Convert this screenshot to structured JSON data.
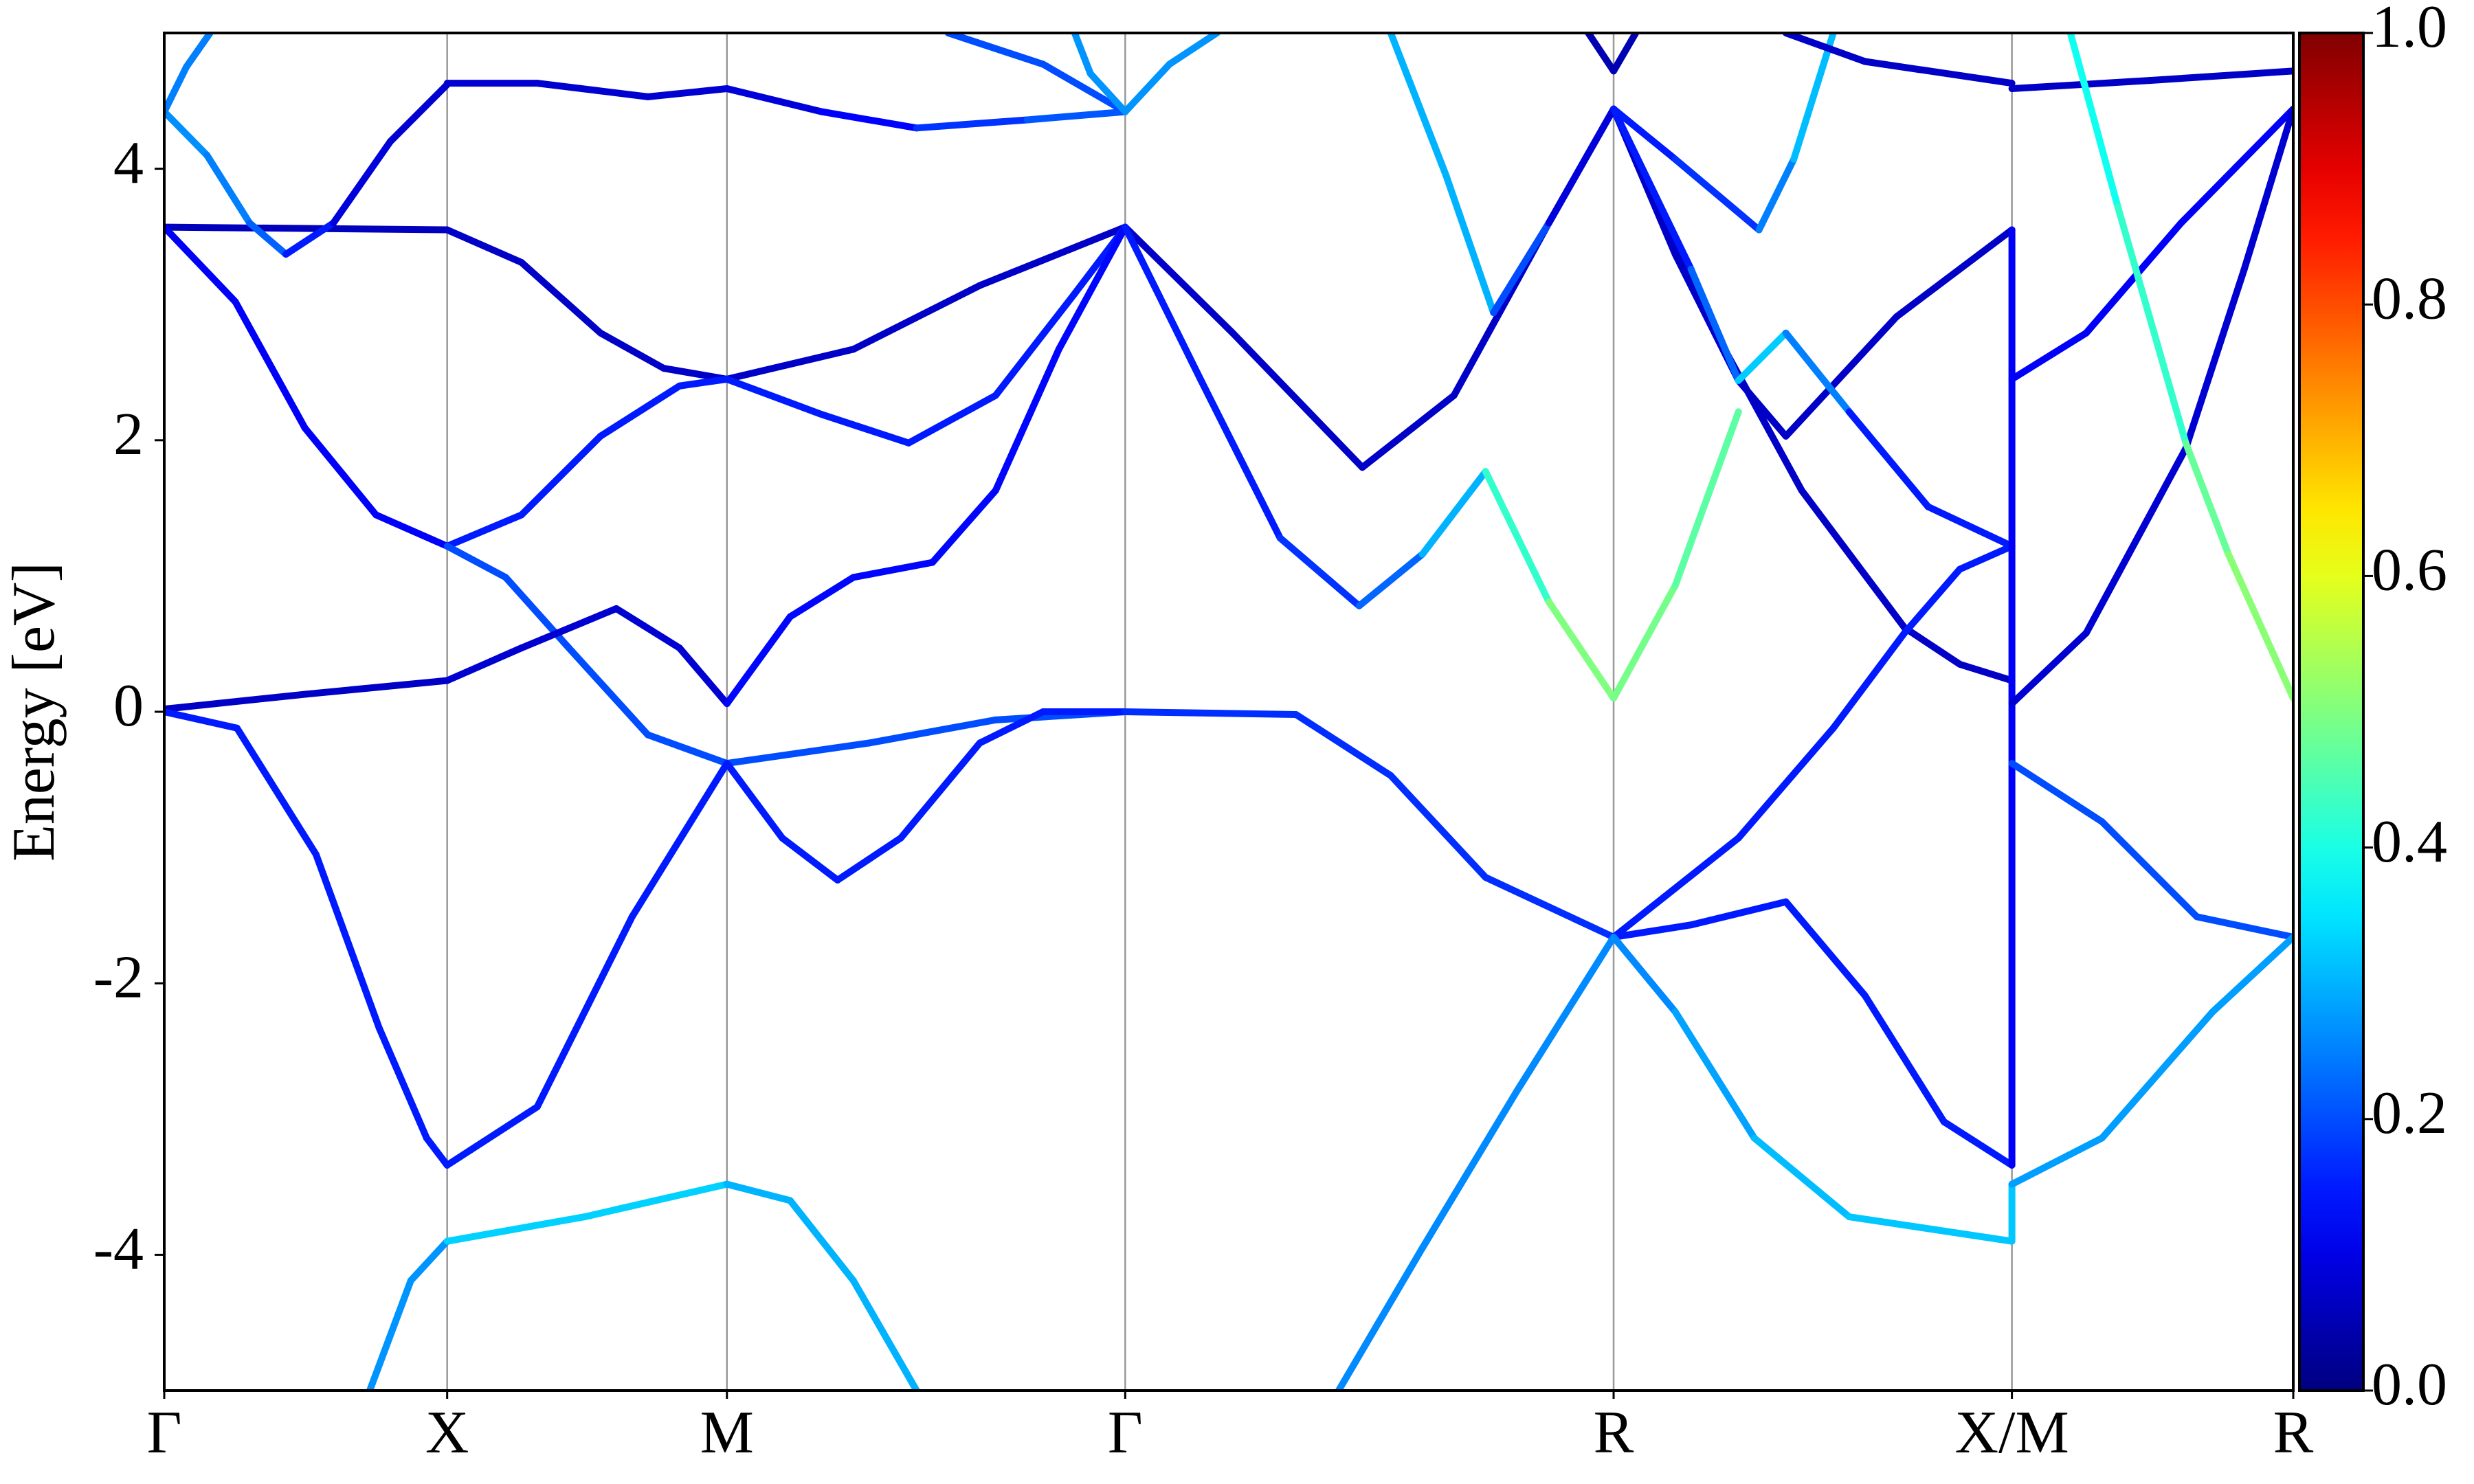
{
  "chart_data": {
    "type": "line",
    "ylabel": "Energy [eV]",
    "colormap": "jet",
    "xlim": [
      0,
      13.47
    ],
    "ylim": [
      -5,
      5
    ],
    "grid": true,
    "xticks": [
      {
        "value": 0,
        "label": "Γ"
      },
      {
        "value": 1.79,
        "label": "X"
      },
      {
        "value": 3.56,
        "label": "M"
      },
      {
        "value": 6.08,
        "label": "Γ"
      },
      {
        "value": 9.17,
        "label": "R"
      },
      {
        "value": 11.69,
        "label": "X/M"
      },
      {
        "value": 13.47,
        "label": "R"
      }
    ],
    "yticks": [
      -4,
      -2,
      0,
      2,
      4
    ],
    "colorbar": {
      "lim": [
        0,
        1
      ],
      "ticks": [
        {
          "value": 0,
          "label": "0.0"
        },
        {
          "value": 0.2,
          "label": "0.2"
        },
        {
          "value": 0.4,
          "label": "0.4"
        },
        {
          "value": 0.6,
          "label": "0.6"
        },
        {
          "value": 0.8,
          "label": "0.8"
        },
        {
          "value": 1,
          "label": "1.0"
        }
      ]
    },
    "series": [
      {
        "x": [
          0,
          1.79
        ],
        "values": [
          3.57,
          3.55
        ],
        "weights": [
          0.06,
          0.06
        ]
      },
      {
        "x": [
          0,
          0.45,
          0.89,
          1.34,
          1.79
        ],
        "values": [
          3.57,
          3.02,
          2.09,
          1.45,
          1.22
        ],
        "weights": [
          0.12,
          0.12,
          0.12,
          0.12,
          0.12
        ]
      },
      {
        "x": [
          0,
          0.27,
          0.54,
          0.77,
          1.07,
          1.43,
          1.79
        ],
        "values": [
          4.42,
          4.1,
          3.6,
          3.37,
          3.6,
          4.2,
          4.62
        ],
        "weights": [
          0.27,
          0.26,
          0.24,
          0.2,
          0.1,
          0.08,
          0.08
        ]
      },
      {
        "x": [
          0,
          0.14,
          0.29
        ],
        "values": [
          4.42,
          4.75,
          5.0
        ],
        "weights": [
          0.25,
          0.25,
          0.25
        ]
      },
      {
        "x": [
          0,
          0.9,
          1.79
        ],
        "values": [
          0.02,
          0.13,
          0.23
        ],
        "weights": [
          0.07,
          0.07,
          0.07
        ]
      },
      {
        "x": [
          0,
          0.46,
          0.96,
          1.36,
          1.66,
          1.79
        ],
        "values": [
          0.0,
          -0.12,
          -1.05,
          -2.33,
          -3.14,
          -3.34
        ],
        "weights": [
          0.15,
          0.15,
          0.15,
          0.15,
          0.15,
          0.15
        ]
      },
      {
        "x": [
          1.3,
          1.56,
          1.79
        ],
        "values": [
          -5,
          -4.19,
          -3.9
        ],
        "weights": [
          0.27,
          0.27,
          0.27
        ]
      },
      {
        "x": [
          1.79,
          2.36,
          3.06,
          3.56
        ],
        "values": [
          4.63,
          4.63,
          4.53,
          4.59
        ],
        "weights": [
          0.08,
          0.08,
          0.08,
          0.08
        ]
      },
      {
        "x": [
          1.79,
          2.26,
          2.76,
          3.16,
          3.56
        ],
        "values": [
          3.55,
          3.31,
          2.79,
          2.53,
          2.45
        ],
        "weights": [
          0.07,
          0.07,
          0.07,
          0.07,
          0.07
        ]
      },
      {
        "x": [
          1.79,
          2.26,
          2.76,
          3.26,
          3.56
        ],
        "values": [
          1.22,
          1.45,
          2.03,
          2.4,
          2.45
        ],
        "weights": [
          0.15,
          0.15,
          0.15,
          0.15,
          0.15
        ]
      },
      {
        "x": [
          1.79,
          2.16,
          2.56,
          3.06,
          3.56
        ],
        "values": [
          1.22,
          0.99,
          0.47,
          -0.17,
          -0.38
        ],
        "weights": [
          0.2,
          0.2,
          0.2,
          0.2,
          0.2
        ]
      },
      {
        "x": [
          1.79,
          2.26,
          2.86,
          3.26,
          3.56
        ],
        "values": [
          0.23,
          0.47,
          0.76,
          0.47,
          0.06
        ],
        "weights": [
          0.08,
          0.08,
          0.08,
          0.08,
          0.08
        ]
      },
      {
        "x": [
          1.79,
          2.36,
          2.96,
          3.56
        ],
        "values": [
          -3.34,
          -2.91,
          -1.51,
          -0.38
        ],
        "weights": [
          0.15,
          0.15,
          0.15,
          0.15
        ]
      },
      {
        "x": [
          1.79,
          2.66,
          3.56
        ],
        "values": [
          -3.9,
          -3.72,
          -3.48
        ],
        "weights": [
          0.33,
          0.33,
          0.33
        ]
      },
      {
        "x": [
          3.56,
          4.16,
          4.76,
          5.46,
          6.08
        ],
        "values": [
          4.59,
          4.42,
          4.3,
          4.36,
          4.42
        ],
        "weights": [
          0.08,
          0.1,
          0.15,
          0.2,
          0.22
        ]
      },
      {
        "x": [
          3.56,
          4.36,
          5.16,
          6.08
        ],
        "values": [
          2.45,
          2.67,
          3.14,
          3.57
        ],
        "weights": [
          0.07,
          0.07,
          0.07,
          0.07
        ]
      },
      {
        "x": [
          3.56,
          4.16,
          4.71,
          5.26,
          5.76,
          6.08
        ],
        "values": [
          2.45,
          2.19,
          1.98,
          2.33,
          3.08,
          3.57
        ],
        "weights": [
          0.15,
          0.15,
          0.15,
          0.15,
          0.15,
          0.15
        ]
      },
      {
        "x": [
          3.56,
          3.96,
          4.36,
          4.86,
          5.26,
          5.66,
          6.08
        ],
        "values": [
          0.06,
          0.7,
          0.99,
          1.1,
          1.63,
          2.67,
          3.57
        ],
        "weights": [
          0.13,
          0.13,
          0.13,
          0.13,
          0.13,
          0.13,
          0.13
        ]
      },
      {
        "x": [
          3.56,
          4.46,
          5.26,
          6.08
        ],
        "values": [
          -0.38,
          -0.23,
          -0.06,
          0.0
        ],
        "weights": [
          0.2,
          0.2,
          0.2,
          0.2
        ]
      },
      {
        "x": [
          3.56,
          3.91,
          4.26,
          4.66,
          5.16,
          5.56,
          6.08
        ],
        "values": [
          -0.38,
          -0.93,
          -1.24,
          -0.93,
          -0.23,
          0.0,
          0.0
        ],
        "weights": [
          0.15,
          0.15,
          0.15,
          0.15,
          0.15,
          0.15,
          0.15
        ]
      },
      {
        "x": [
          3.56,
          3.96,
          4.36,
          4.76
        ],
        "values": [
          -3.48,
          -3.6,
          -4.19,
          -5
        ],
        "weights": [
          0.3,
          0.3,
          0.3,
          0.3
        ]
      },
      {
        "x": [
          4.96,
          5.56,
          6.08
        ],
        "values": [
          5,
          4.77,
          4.42
        ],
        "weights": [
          0.2,
          0.2,
          0.2
        ]
      },
      {
        "x": [
          5.76,
          5.86,
          6.08
        ],
        "values": [
          5,
          4.7,
          4.42
        ],
        "weights": [
          0.27,
          0.27,
          0.27
        ]
      },
      {
        "x": [
          6.08,
          6.36,
          6.66
        ],
        "values": [
          4.42,
          4.77,
          5
        ],
        "weights": [
          0.27,
          0.27,
          0.27
        ]
      },
      {
        "x": [
          6.08,
          6.76,
          7.58,
          8.16,
          8.76,
          9.17
        ],
        "values": [
          3.57,
          2.79,
          1.8,
          2.33,
          3.6,
          4.44
        ],
        "weights": [
          0.07,
          0.07,
          0.07,
          0.07,
          0.07,
          0.07
        ]
      },
      {
        "x": [
          6.08,
          6.56,
          7.06,
          7.56,
          7.96,
          8.36,
          8.76,
          9.17
        ],
        "values": [
          3.57,
          2.44,
          1.28,
          0.78,
          1.16,
          1.77,
          0.81,
          0.1
        ],
        "weights": [
          0.15,
          0.15,
          0.15,
          0.2,
          0.25,
          0.35,
          0.5,
          0.5
        ]
      },
      {
        "x": [
          6.08,
          7.16,
          7.76,
          8.36,
          9.17
        ],
        "values": [
          0,
          -0.02,
          -0.47,
          -1.22,
          -1.66
        ],
        "weights": [
          0.17,
          0.17,
          0.17,
          0.17,
          0.17
        ]
      },
      {
        "x": [
          7.43,
          7.96,
          8.56,
          9.17
        ],
        "values": [
          -5,
          -3.95,
          -2.79,
          -1.66
        ],
        "weights": [
          0.26,
          0.26,
          0.26,
          0.26
        ]
      },
      {
        "x": [
          7.76,
          8.11,
          8.41,
          8.76,
          9.17
        ],
        "values": [
          5,
          3.95,
          2.94,
          3.6,
          4.44
        ],
        "weights": [
          0.3,
          0.3,
          0.3,
          0.1,
          0.08
        ]
      },
      {
        "x": [
          9.01,
          9.17,
          9.31
        ],
        "values": [
          5,
          4.72,
          5
        ],
        "weights": [
          0.05,
          0.05,
          0.05
        ]
      },
      {
        "x": [
          9.17,
          9.56,
          10.09,
          10.31,
          10.56
        ],
        "values": [
          4.44,
          4.07,
          3.55,
          4.07,
          5
        ],
        "weights": [
          0.15,
          0.15,
          0.2,
          0.3,
          0.32
        ]
      },
      {
        "x": [
          9.17,
          9.56,
          9.96,
          10.26,
          10.96,
          11.69
        ],
        "values": [
          4.44,
          3.37,
          2.44,
          2.03,
          2.91,
          3.55
        ],
        "weights": [
          0.07,
          0.07,
          0.07,
          0.07,
          0.07,
          0.07
        ]
      },
      {
        "x": [
          9.17,
          9.76,
          10.36,
          11.01,
          11.36,
          11.69
        ],
        "values": [
          4.44,
          2.91,
          1.63,
          0.62,
          0.35,
          0.23
        ],
        "weights": [
          0.07,
          0.07,
          0.07,
          0.07,
          0.07,
          0.07
        ]
      },
      {
        "x": [
          9.17,
          9.66,
          9.96,
          10.26,
          10.66,
          11.16,
          11.69
        ],
        "values": [
          4.44,
          3.26,
          2.44,
          2.79,
          2.21,
          1.51,
          1.22
        ],
        "weights": [
          0.15,
          0.15,
          0.3,
          0.35,
          0.15,
          0.15,
          0.15
        ]
      },
      {
        "x": [
          9.17,
          9.56,
          9.96
        ],
        "values": [
          0.1,
          0.93,
          2.21
        ],
        "weights": [
          0.5,
          0.48,
          0.45
        ]
      },
      {
        "x": [
          9.17,
          9.96,
          10.56,
          11.01,
          11.36,
          11.69
        ],
        "values": [
          -1.66,
          -0.93,
          -0.12,
          0.58,
          1.05,
          1.22
        ],
        "weights": [
          0.15,
          0.15,
          0.15,
          0.15,
          0.15,
          0.15
        ]
      },
      {
        "x": [
          9.17,
          9.66,
          10.26,
          10.76,
          11.26,
          11.69
        ],
        "values": [
          -1.66,
          -1.57,
          -1.4,
          -2.09,
          -3.02,
          -3.34
        ],
        "weights": [
          0.15,
          0.15,
          0.15,
          0.15,
          0.15,
          0.15
        ]
      },
      {
        "x": [
          9.17,
          9.56,
          10.06,
          10.66,
          11.69
        ],
        "values": [
          -1.66,
          -2.21,
          -3.14,
          -3.72,
          -3.9
        ],
        "weights": [
          0.25,
          0.27,
          0.3,
          0.32,
          0.32
        ]
      },
      {
        "x": [
          10.26,
          10.76,
          11.69
        ],
        "values": [
          5,
          4.79,
          4.63
        ],
        "weights": [
          0.07,
          0.07,
          0.07
        ]
      },
      {
        "x": [
          11.69,
          11.69
        ],
        "values": [
          3.55,
          -3.34
        ],
        "weights": [
          0.12,
          0.12
        ]
      },
      {
        "x": [
          11.69,
          11.69
        ],
        "values": [
          -3.9,
          -3.48
        ],
        "weights": [
          0.32,
          0.32
        ]
      },
      {
        "x": [
          11.69,
          12.56,
          13.47
        ],
        "values": [
          4.59,
          4.65,
          4.72
        ],
        "weights": [
          0.07,
          0.07,
          0.07
        ]
      },
      {
        "x": [
          11.69,
          12.16,
          12.76,
          13.47
        ],
        "values": [
          2.45,
          2.79,
          3.6,
          4.44
        ],
        "weights": [
          0.12,
          0.12,
          0.12,
          0.12
        ]
      },
      {
        "x": [
          11.69,
          12.16,
          12.79,
          13.16,
          13.47
        ],
        "values": [
          0.06,
          0.58,
          1.94,
          3.26,
          4.44
        ],
        "weights": [
          0.08,
          0.08,
          0.08,
          0.08,
          0.08
        ]
      },
      {
        "x": [
          12.06,
          12.36,
          12.79,
          13.06,
          13.47
        ],
        "values": [
          5,
          3.72,
          1.98,
          1.16,
          0.1
        ],
        "weights": [
          0.38,
          0.4,
          0.45,
          0.5,
          0.52
        ]
      },
      {
        "x": [
          11.69,
          12.26,
          12.86,
          13.47
        ],
        "values": [
          -0.38,
          -0.81,
          -1.51,
          -1.66
        ],
        "weights": [
          0.2,
          0.2,
          0.2,
          0.2
        ]
      },
      {
        "x": [
          11.69,
          12.26,
          12.96,
          13.47
        ],
        "values": [
          -3.48,
          -3.14,
          -2.21,
          -1.66
        ],
        "weights": [
          0.28,
          0.28,
          0.28,
          0.28
        ]
      }
    ]
  }
}
